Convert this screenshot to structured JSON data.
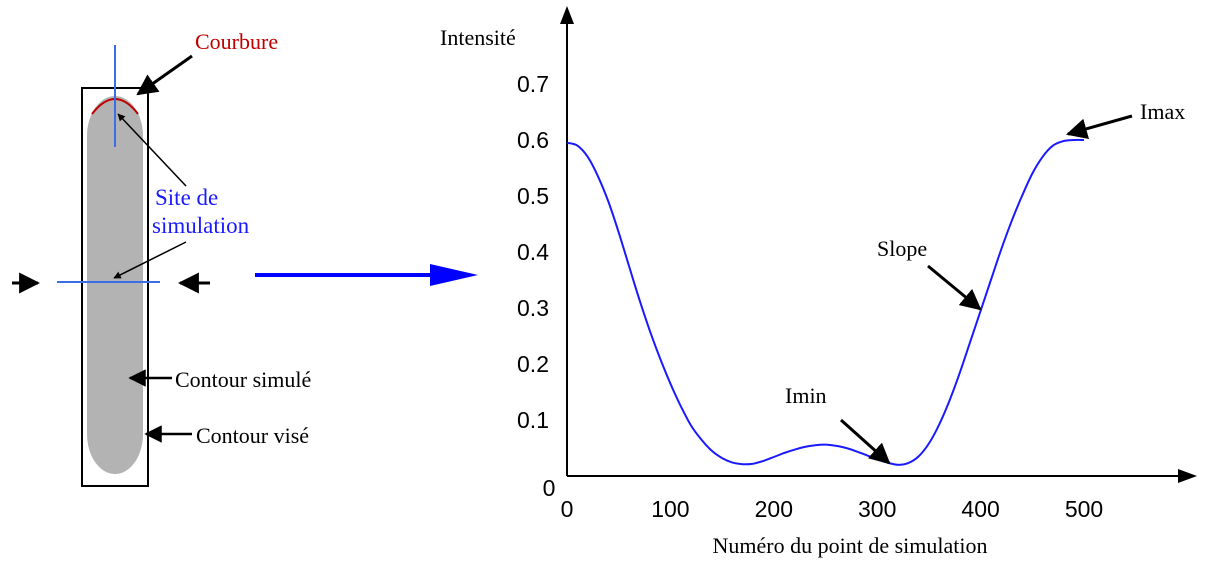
{
  "colors": {
    "black": "#000000",
    "blue": "#1a1aff",
    "line_blue": "#3a6ee8",
    "red": "#c00000",
    "gray": "#b3b3b3",
    "arrow_blue": "#0000ff"
  },
  "diagram": {
    "courbure_label": "Courbure",
    "site_label_line1": "Site de",
    "site_label_line2": "simulation",
    "contour_simule_label": "Contour simulé",
    "contour_vise_label": "Contour visé"
  },
  "chart_data": {
    "type": "line",
    "title": "",
    "ylabel": "Intensité",
    "xlabel": "Numéro du point de simulation",
    "xlim": [
      0,
      600
    ],
    "ylim": [
      0,
      0.75
    ],
    "x_ticks": [
      0,
      100,
      200,
      300,
      400,
      500
    ],
    "y_ticks": [
      0.1,
      0.2,
      0.3,
      0.4,
      0.5,
      0.6,
      0.7
    ],
    "x_tick_labels": [
      "0",
      "100",
      "200",
      "300",
      "400",
      "500"
    ],
    "y_tick_labels": [
      "0.1",
      "0.2",
      "0.3",
      "0.4",
      "0.5",
      "0.6",
      "0.7"
    ],
    "origin_label": "0",
    "grid": false,
    "series": [
      {
        "x": [
          0,
          10,
          20,
          30,
          40,
          50,
          60,
          70,
          80,
          90,
          100,
          110,
          120,
          130,
          140,
          150,
          160,
          170,
          180,
          190,
          200,
          210,
          220,
          230,
          240,
          250,
          260,
          270,
          280,
          290,
          300,
          310,
          320,
          330,
          340,
          350,
          360,
          370,
          380,
          390,
          400,
          410,
          420,
          430,
          440,
          450,
          460,
          470,
          480,
          490,
          500
        ],
        "y": [
          0.595,
          0.59,
          0.57,
          0.535,
          0.49,
          0.435,
          0.375,
          0.315,
          0.26,
          0.21,
          0.165,
          0.125,
          0.09,
          0.065,
          0.045,
          0.032,
          0.024,
          0.021,
          0.022,
          0.027,
          0.034,
          0.041,
          0.047,
          0.052,
          0.055,
          0.056,
          0.054,
          0.05,
          0.044,
          0.037,
          0.03,
          0.024,
          0.02,
          0.023,
          0.035,
          0.058,
          0.092,
          0.135,
          0.185,
          0.24,
          0.295,
          0.35,
          0.405,
          0.455,
          0.5,
          0.54,
          0.57,
          0.59,
          0.598,
          0.6,
          0.6
        ]
      }
    ],
    "annotations": [
      {
        "text": "Imax",
        "x": 500,
        "y": 0.6
      },
      {
        "text": "Slope",
        "x": 415,
        "y": 0.3
      },
      {
        "text": "Imin",
        "x": 325,
        "y": 0.025
      }
    ]
  }
}
